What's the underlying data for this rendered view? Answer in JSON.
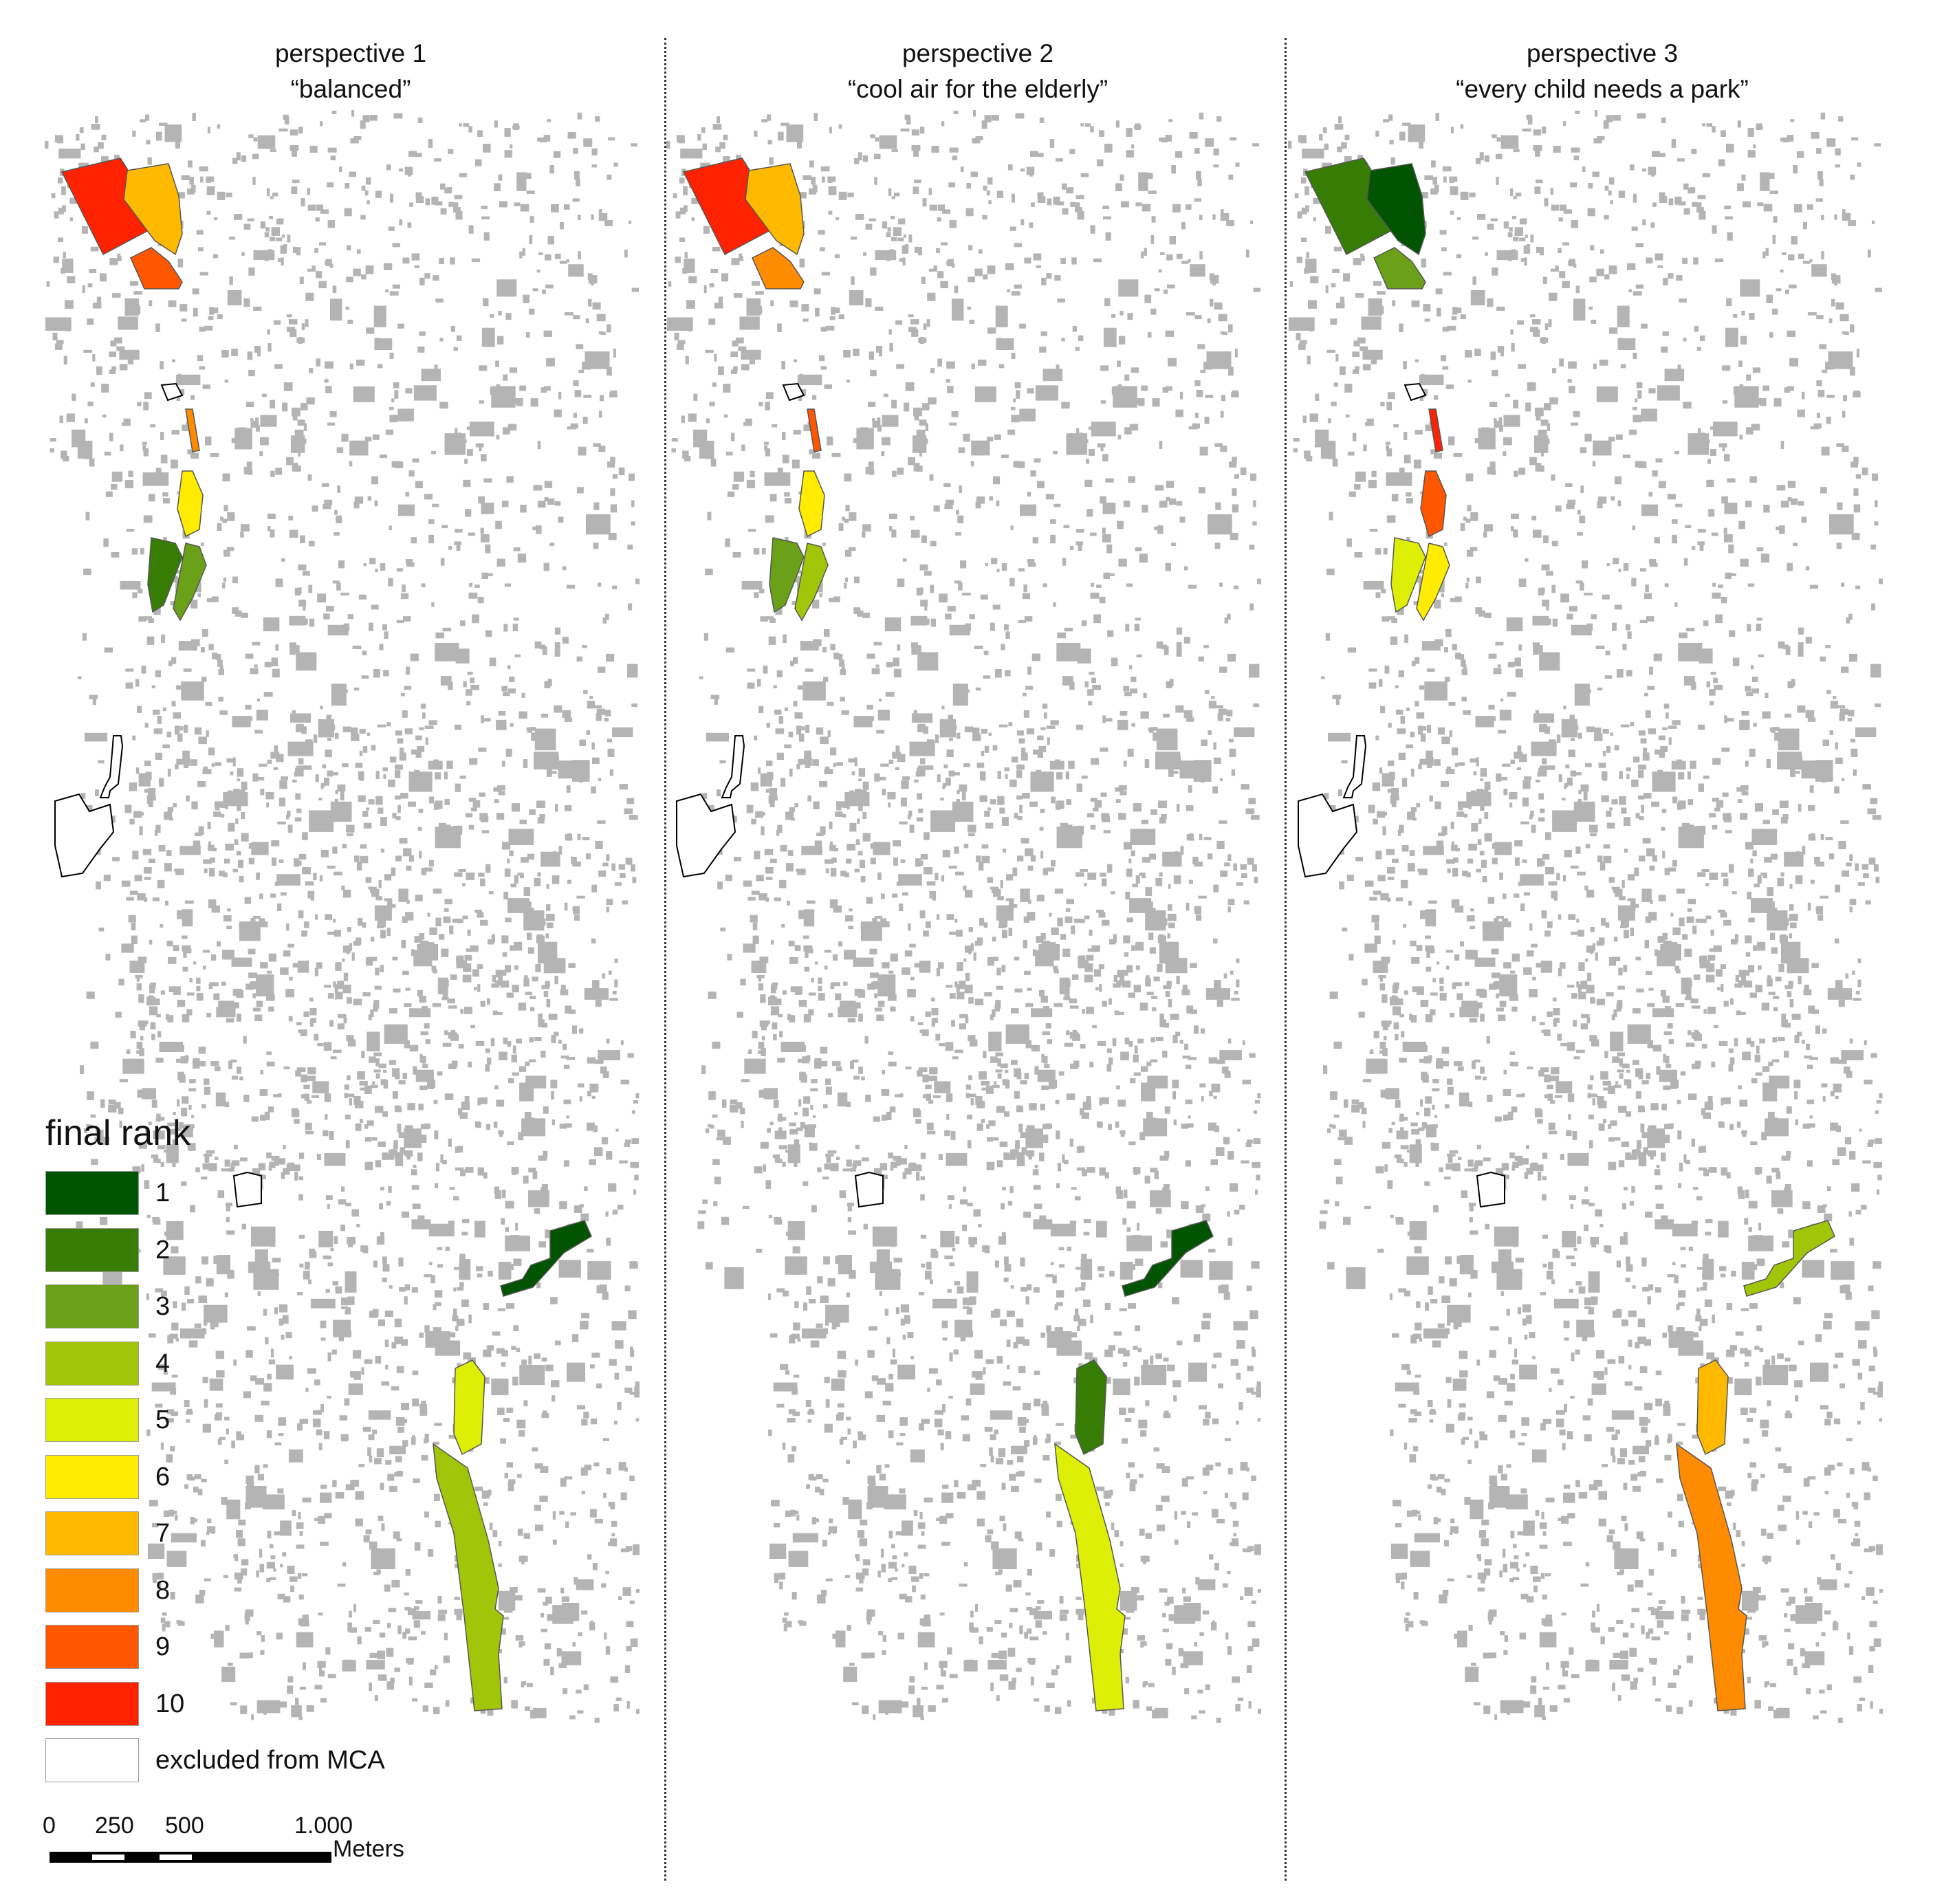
{
  "colors": {
    "building": "#b4b4b4",
    "excluded_fill": "#ffffff",
    "excluded_stroke": "#000000"
  },
  "panels": [
    {
      "title": "perspective 1",
      "subtitle": "“balanced”"
    },
    {
      "title": "perspective 2",
      "subtitle": "“cool air for the elderly”"
    },
    {
      "title": "perspective 3",
      "subtitle": "“every child needs a park”"
    }
  ],
  "legend": {
    "title": "final rank",
    "items": [
      {
        "label": "1",
        "color": "#015401"
      },
      {
        "label": "2",
        "color": "#377d05"
      },
      {
        "label": "3",
        "color": "#6aa118"
      },
      {
        "label": "4",
        "color": "#a1c509"
      },
      {
        "label": "5",
        "color": "#ddee07"
      },
      {
        "label": "6",
        "color": "#ffec00"
      },
      {
        "label": "7",
        "color": "#ffba00"
      },
      {
        "label": "8",
        "color": "#ff8c00"
      },
      {
        "label": "9",
        "color": "#ff5700"
      },
      {
        "label": "10",
        "color": "#ff2200"
      }
    ],
    "excluded": {
      "label": "excluded from MCA",
      "color": "#ffffff"
    }
  },
  "scale": {
    "ticks": [
      "0",
      "250",
      "500",
      "1.000"
    ],
    "unit": "Meters"
  },
  "site_ranks": {
    "note_sites": [
      "northwest-large",
      "north-middle",
      "north-small",
      "narrow-strip",
      "central-yellow",
      "west-pair-left",
      "west-pair-right",
      "southeast-irregular",
      "south-block",
      "south-long"
    ],
    "perspective_1": [
      10,
      7,
      9,
      8,
      6,
      2,
      3,
      1,
      5,
      4
    ],
    "perspective_2": [
      10,
      7,
      8,
      9,
      6,
      3,
      4,
      1,
      2,
      5
    ],
    "perspective_3": [
      2,
      1,
      3,
      10,
      9,
      5,
      6,
      4,
      7,
      8
    ]
  }
}
